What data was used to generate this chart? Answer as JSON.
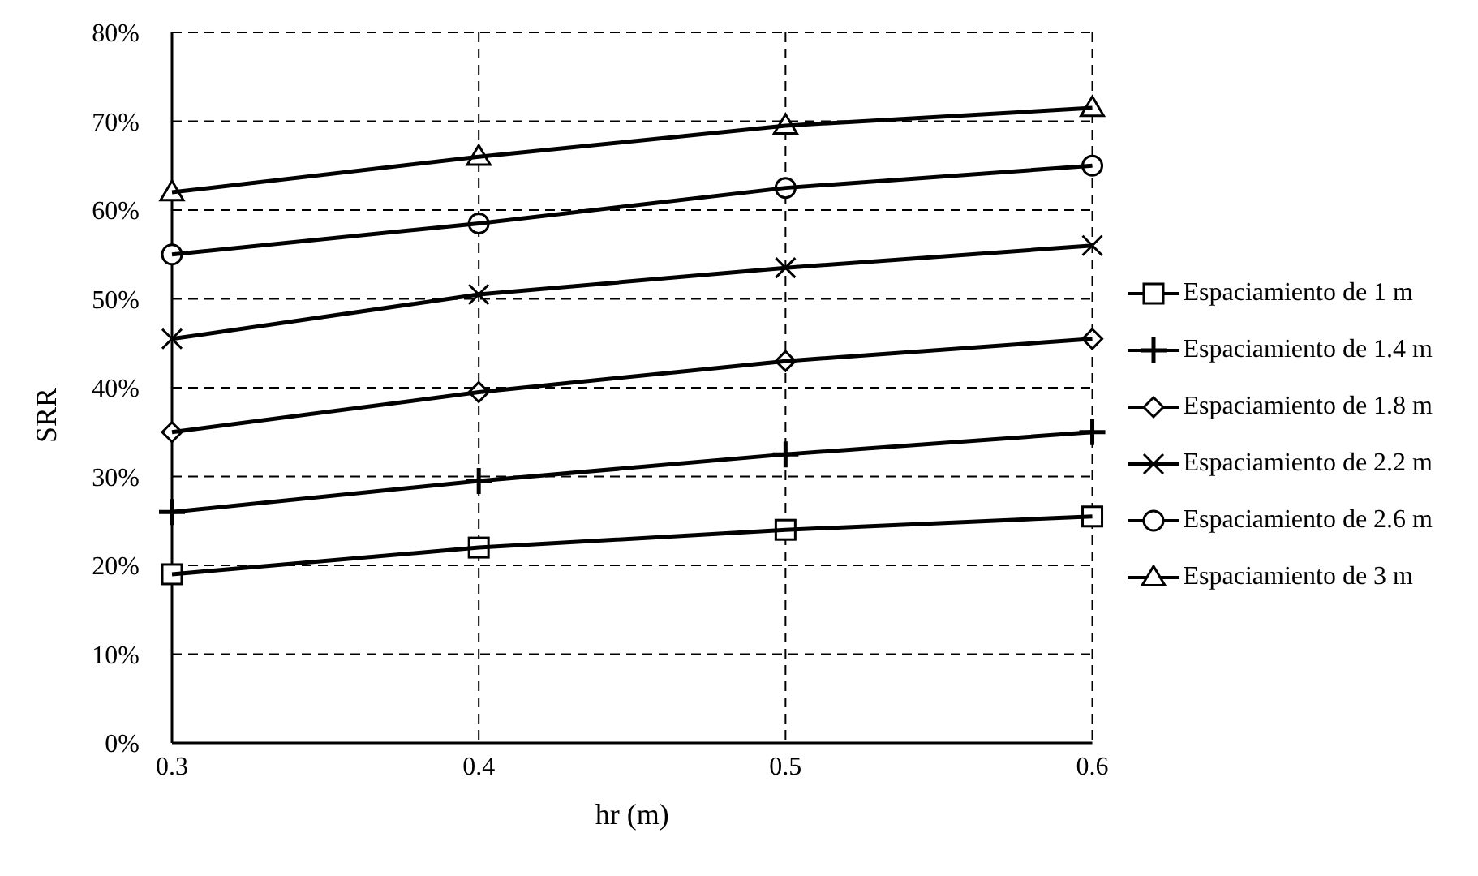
{
  "chart_data": {
    "type": "line",
    "xlabel": "hr (m)",
    "ylabel": "SRR",
    "x": [
      0.3,
      0.4,
      0.5,
      0.6
    ],
    "series": [
      {
        "name": "Espaciamiento de 1 m",
        "color": "#000000",
        "marker": "square",
        "values": [
          19,
          22,
          24,
          25.5
        ]
      },
      {
        "name": "Espaciamiento de 1.4 m",
        "color": "#000000",
        "marker": "cross",
        "values": [
          26,
          29.5,
          32.5,
          35
        ]
      },
      {
        "name": "Espaciamiento de 1.8 m",
        "color": "#000000",
        "marker": "diamond",
        "values": [
          35,
          39.5,
          43,
          45.5
        ]
      },
      {
        "name": "Espaciamiento de 2.2 m",
        "color": "#000000",
        "marker": "x",
        "values": [
          45.5,
          50.5,
          53.5,
          56
        ]
      },
      {
        "name": "Espaciamiento de 2.6 m",
        "color": "#000000",
        "marker": "circle",
        "values": [
          55,
          58.5,
          62.5,
          65
        ]
      },
      {
        "name": "Espaciamiento de 3 m",
        "color": "#000000",
        "marker": "triangle",
        "values": [
          62,
          66,
          69.5,
          71.5
        ]
      }
    ],
    "xlim": [
      0.3,
      0.6
    ],
    "xticks": [
      0.3,
      0.4,
      0.5,
      0.6
    ],
    "ylim": [
      0,
      80
    ],
    "yticks": [
      {
        "value": 0,
        "label": "0%"
      },
      {
        "value": 10,
        "label": "10%"
      },
      {
        "value": 20,
        "label": "20%"
      },
      {
        "value": 30,
        "label": "30%"
      },
      {
        "value": 40,
        "label": "40%"
      },
      {
        "value": 50,
        "label": "50%"
      },
      {
        "value": 60,
        "label": "60%"
      },
      {
        "value": 70,
        "label": "70%"
      },
      {
        "value": 80,
        "label": "80%"
      }
    ],
    "grid": true,
    "legend": "right"
  }
}
